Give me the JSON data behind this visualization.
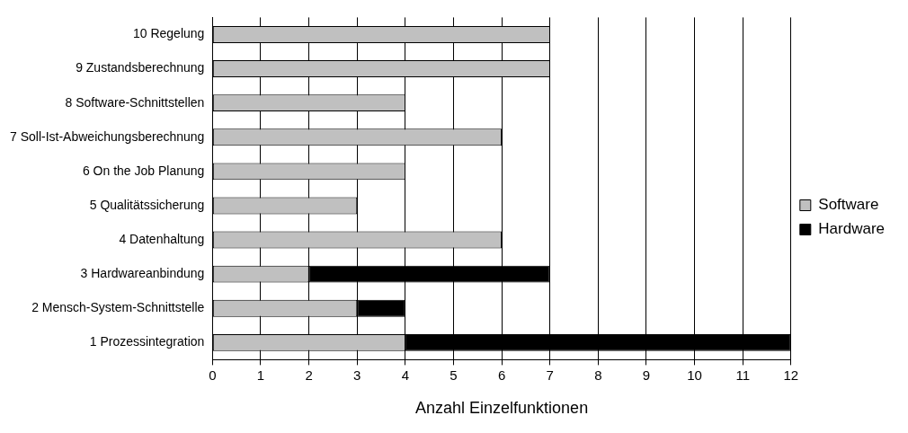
{
  "chart_data": {
    "type": "bar",
    "orientation": "horizontal",
    "stacked": true,
    "xlabel": "Anzahl Einzelfunktionen",
    "categories": [
      "10 Regelung",
      "9 Zustandsberechnung",
      "8 Software-Schnittstellen",
      "7 Soll-Ist-Abweichungsberechnung",
      "6 On the Job Planung",
      "5 Qualitätssicherung",
      "4 Datenhaltung",
      "3 Hardwareanbindung",
      "2 Mensch-System-Schnittstelle",
      "1 Prozessintegration"
    ],
    "series": [
      {
        "name": "Software",
        "color": "#c0c0c0",
        "values": [
          7,
          7,
          4,
          6,
          4,
          3,
          6,
          2,
          3,
          4
        ]
      },
      {
        "name": "Hardware",
        "color": "#000000",
        "values": [
          0,
          0,
          0,
          0,
          0,
          0,
          0,
          5,
          1,
          8
        ]
      }
    ],
    "xlim": [
      0,
      12
    ],
    "xticks": [
      0,
      1,
      2,
      3,
      4,
      5,
      6,
      7,
      8,
      9,
      10,
      11,
      12
    ],
    "grid": "x",
    "legend": "right"
  }
}
